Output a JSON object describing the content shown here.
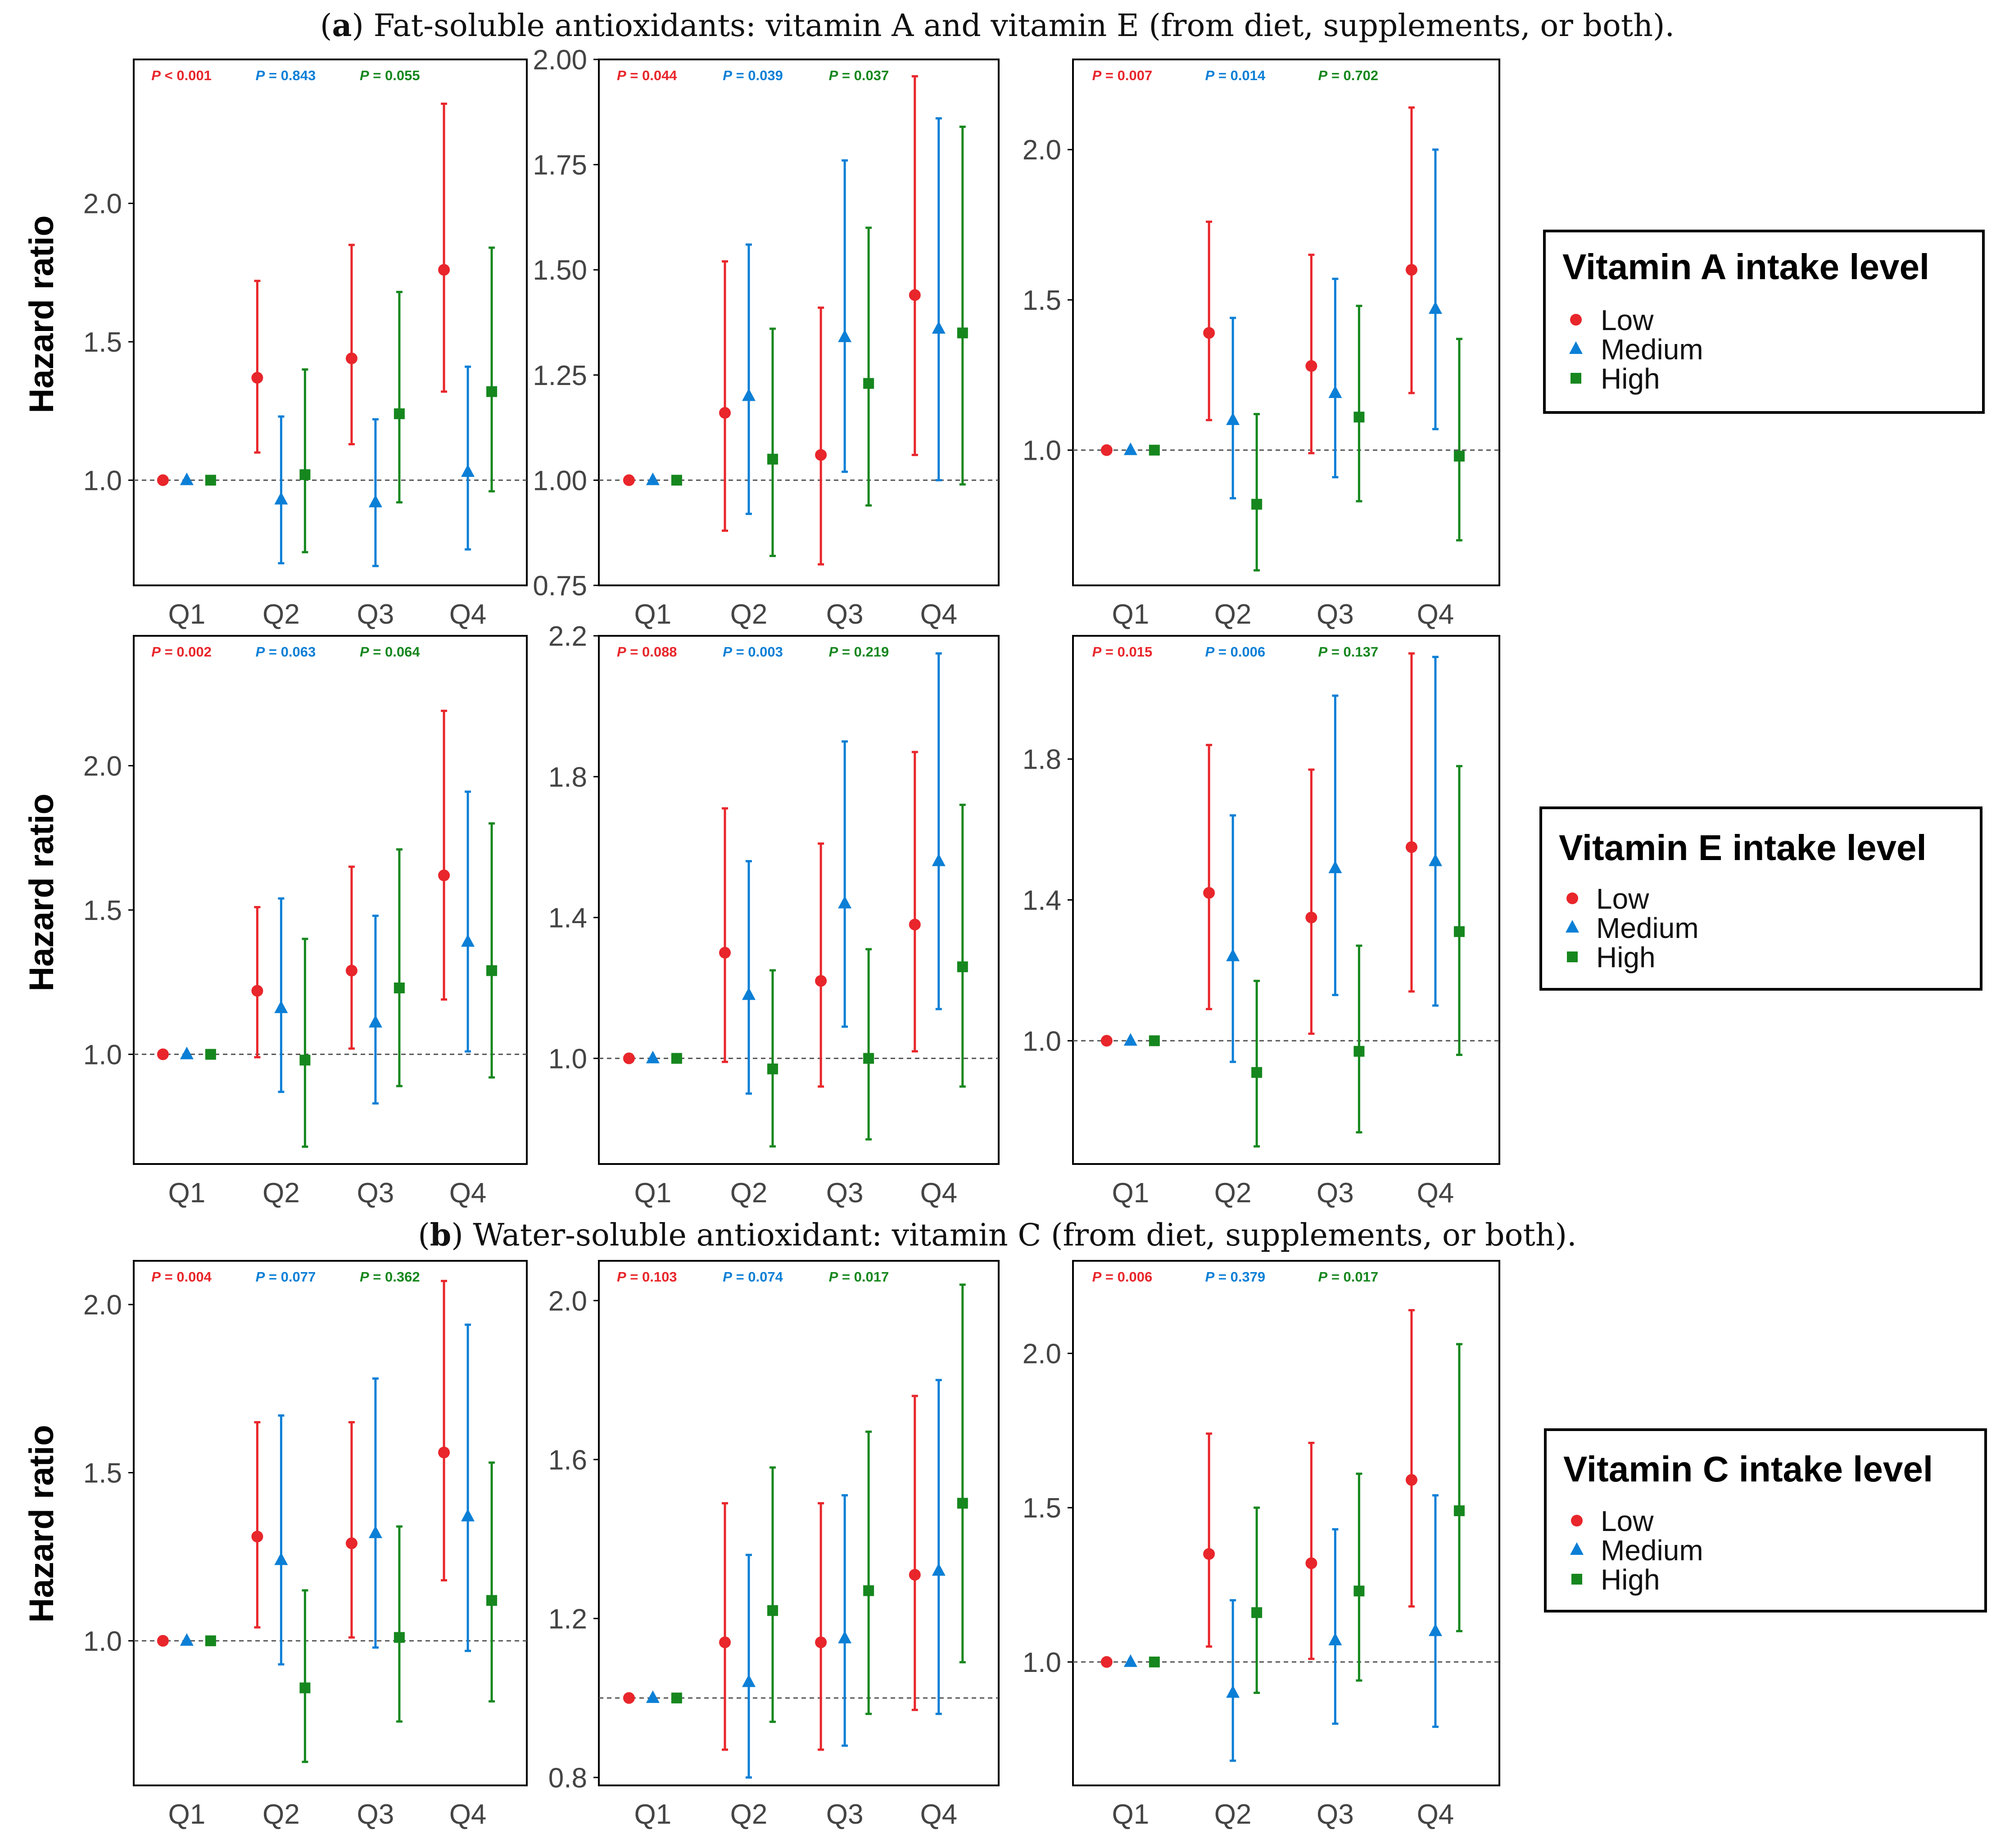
{
  "headings": {
    "a": {
      "label": "a",
      "text": ") Fat-soluble antioxidants: vitamin A and vitamin E (from diet, supplements, or both)."
    },
    "b": {
      "label": "b",
      "text": ") Water-soluble antioxidant: vitamin C (from diet, supplements, or both)."
    }
  },
  "legends": [
    {
      "title": "Vitamin A intake level",
      "items": [
        "Low",
        "Medium",
        "High"
      ]
    },
    {
      "title": "Vitamin E intake level",
      "items": [
        "Low",
        "Medium",
        "High"
      ]
    },
    {
      "title": "Vitamin C intake level",
      "items": [
        "Low",
        "Medium",
        "High"
      ]
    }
  ],
  "colors": {
    "Low": "#e8262b",
    "Medium": "#0b7fd6",
    "High": "#16871e",
    "reference_line": "#555555"
  },
  "y_axis_label": "Hazard ratio",
  "p_prefix": "P",
  "chart_data": [
    {
      "type": "scatter",
      "row": 0,
      "col": 0,
      "ylabel": "Hazard ratio",
      "categories": [
        "Q1",
        "Q2",
        "Q3",
        "Q4"
      ],
      "ylim": [
        0.62,
        2.52
      ],
      "yticks": [
        1.0,
        1.5,
        2.0
      ],
      "yticklabels": [
        "1.0",
        "1.5",
        "2.0"
      ],
      "reference_line": 1.0,
      "p_values": [
        {
          "series": "Low",
          "text": "< 0.001"
        },
        {
          "series": "Medium",
          "text": "= 0.843"
        },
        {
          "series": "High",
          "text": "= 0.055"
        }
      ],
      "series": [
        {
          "name": "Low",
          "estimate": [
            1.0,
            1.37,
            1.44,
            1.76
          ],
          "lower": [
            null,
            1.1,
            1.13,
            1.32
          ],
          "upper": [
            null,
            1.72,
            1.85,
            2.36
          ]
        },
        {
          "name": "Medium",
          "estimate": [
            1.0,
            0.93,
            0.92,
            1.03
          ],
          "lower": [
            null,
            0.7,
            0.69,
            0.75
          ],
          "upper": [
            null,
            1.23,
            1.22,
            1.41
          ]
        },
        {
          "name": "High",
          "estimate": [
            1.0,
            1.02,
            1.24,
            1.32
          ],
          "lower": [
            null,
            0.74,
            0.92,
            0.96
          ],
          "upper": [
            null,
            1.4,
            1.68,
            1.84
          ]
        }
      ]
    },
    {
      "type": "scatter",
      "row": 0,
      "col": 1,
      "ylabel": "",
      "categories": [
        "Q1",
        "Q2",
        "Q3",
        "Q4"
      ],
      "ylim": [
        0.75,
        2.0
      ],
      "yticks": [
        0.75,
        1.0,
        1.25,
        1.5,
        1.75,
        2.0
      ],
      "yticklabels": [
        "0.75",
        "1.00",
        "1.25",
        "1.50",
        "1.75",
        "2.00"
      ],
      "reference_line": 1.0,
      "p_values": [
        {
          "series": "Low",
          "text": "= 0.044"
        },
        {
          "series": "Medium",
          "text": "= 0.039"
        },
        {
          "series": "High",
          "text": "= 0.037"
        }
      ],
      "series": [
        {
          "name": "Low",
          "estimate": [
            1.0,
            1.16,
            1.06,
            1.44
          ],
          "lower": [
            null,
            0.88,
            0.8,
            1.06
          ],
          "upper": [
            null,
            1.52,
            1.41,
            1.96
          ]
        },
        {
          "name": "Medium",
          "estimate": [
            1.0,
            1.2,
            1.34,
            1.36
          ],
          "lower": [
            null,
            0.92,
            1.02,
            1.0
          ],
          "upper": [
            null,
            1.56,
            1.76,
            1.86
          ]
        },
        {
          "name": "High",
          "estimate": [
            1.0,
            1.05,
            1.23,
            1.35
          ],
          "lower": [
            null,
            0.82,
            0.94,
            0.99
          ],
          "upper": [
            null,
            1.36,
            1.6,
            1.84
          ]
        }
      ]
    },
    {
      "type": "scatter",
      "row": 0,
      "col": 2,
      "ylabel": "",
      "categories": [
        "Q1",
        "Q2",
        "Q3",
        "Q4"
      ],
      "ylim": [
        0.55,
        2.3
      ],
      "yticks": [
        1.0,
        1.5,
        2.0
      ],
      "yticklabels": [
        "1.0",
        "1.5",
        "2.0"
      ],
      "reference_line": 1.0,
      "p_values": [
        {
          "series": "Low",
          "text": "= 0.007"
        },
        {
          "series": "Medium",
          "text": "= 0.014"
        },
        {
          "series": "High",
          "text": "= 0.702"
        }
      ],
      "series": [
        {
          "name": "Low",
          "estimate": [
            1.0,
            1.39,
            1.28,
            1.6
          ],
          "lower": [
            null,
            1.1,
            0.99,
            1.19
          ],
          "upper": [
            null,
            1.76,
            1.65,
            2.14
          ]
        },
        {
          "name": "Medium",
          "estimate": [
            1.0,
            1.1,
            1.19,
            1.47
          ],
          "lower": [
            null,
            0.84,
            0.91,
            1.07
          ],
          "upper": [
            null,
            1.44,
            1.57,
            2.0
          ]
        },
        {
          "name": "High",
          "estimate": [
            1.0,
            0.82,
            1.11,
            0.98
          ],
          "lower": [
            null,
            0.6,
            0.83,
            0.7
          ],
          "upper": [
            null,
            1.12,
            1.48,
            1.37
          ]
        }
      ]
    },
    {
      "type": "scatter",
      "row": 1,
      "col": 0,
      "ylabel": "Hazard ratio",
      "categories": [
        "Q1",
        "Q2",
        "Q3",
        "Q4"
      ],
      "ylim": [
        0.62,
        2.45
      ],
      "yticks": [
        1.0,
        1.5,
        2.0
      ],
      "yticklabels": [
        "1.0",
        "1.5",
        "2.0"
      ],
      "reference_line": 1.0,
      "p_values": [
        {
          "series": "Low",
          "text": "= 0.002"
        },
        {
          "series": "Medium",
          "text": "= 0.063"
        },
        {
          "series": "High",
          "text": "= 0.064"
        }
      ],
      "series": [
        {
          "name": "Low",
          "estimate": [
            1.0,
            1.22,
            1.29,
            1.62
          ],
          "lower": [
            null,
            0.99,
            1.02,
            1.19
          ],
          "upper": [
            null,
            1.51,
            1.65,
            2.19
          ]
        },
        {
          "name": "Medium",
          "estimate": [
            1.0,
            1.16,
            1.11,
            1.39
          ],
          "lower": [
            null,
            0.87,
            0.83,
            1.01
          ],
          "upper": [
            null,
            1.54,
            1.48,
            1.91
          ]
        },
        {
          "name": "High",
          "estimate": [
            1.0,
            0.98,
            1.23,
            1.29
          ],
          "lower": [
            null,
            0.68,
            0.89,
            0.92
          ],
          "upper": [
            null,
            1.4,
            1.71,
            1.8
          ]
        }
      ]
    },
    {
      "type": "scatter",
      "row": 1,
      "col": 1,
      "ylabel": "",
      "categories": [
        "Q1",
        "Q2",
        "Q3",
        "Q4"
      ],
      "ylim": [
        0.7,
        2.2
      ],
      "yticks": [
        1.0,
        1.4,
        1.8,
        2.2
      ],
      "yticklabels": [
        "1.0",
        "1.4",
        "1.8",
        "2.2"
      ],
      "reference_line": 1.0,
      "p_values": [
        {
          "series": "Low",
          "text": "= 0.088"
        },
        {
          "series": "Medium",
          "text": "= 0.003"
        },
        {
          "series": "High",
          "text": "= 0.219"
        }
      ],
      "series": [
        {
          "name": "Low",
          "estimate": [
            1.0,
            1.3,
            1.22,
            1.38
          ],
          "lower": [
            null,
            0.99,
            0.92,
            1.02
          ],
          "upper": [
            null,
            1.71,
            1.61,
            1.87
          ]
        },
        {
          "name": "Medium",
          "estimate": [
            1.0,
            1.18,
            1.44,
            1.56
          ],
          "lower": [
            null,
            0.9,
            1.09,
            1.14
          ],
          "upper": [
            null,
            1.56,
            1.9,
            2.15
          ]
        },
        {
          "name": "High",
          "estimate": [
            1.0,
            0.97,
            1.0,
            1.26
          ],
          "lower": [
            null,
            0.75,
            0.77,
            0.92
          ],
          "upper": [
            null,
            1.25,
            1.31,
            1.72
          ]
        }
      ]
    },
    {
      "type": "scatter",
      "row": 1,
      "col": 2,
      "ylabel": "",
      "categories": [
        "Q1",
        "Q2",
        "Q3",
        "Q4"
      ],
      "ylim": [
        0.65,
        2.15
      ],
      "yticks": [
        1.0,
        1.4,
        1.8
      ],
      "yticklabels": [
        "1.0",
        "1.4",
        "1.8"
      ],
      "reference_line": 1.0,
      "p_values": [
        {
          "series": "Low",
          "text": "= 0.015"
        },
        {
          "series": "Medium",
          "text": "= 0.006"
        },
        {
          "series": "High",
          "text": "= 0.137"
        }
      ],
      "series": [
        {
          "name": "Low",
          "estimate": [
            1.0,
            1.42,
            1.35,
            1.55
          ],
          "lower": [
            null,
            1.09,
            1.02,
            1.14
          ],
          "upper": [
            null,
            1.84,
            1.77,
            2.1
          ]
        },
        {
          "name": "Medium",
          "estimate": [
            1.0,
            1.24,
            1.49,
            1.51
          ],
          "lower": [
            null,
            0.94,
            1.13,
            1.1
          ],
          "upper": [
            null,
            1.64,
            1.98,
            2.09
          ]
        },
        {
          "name": "High",
          "estimate": [
            1.0,
            0.91,
            0.97,
            1.31
          ],
          "lower": [
            null,
            0.7,
            0.74,
            0.96
          ],
          "upper": [
            null,
            1.17,
            1.27,
            1.78
          ]
        }
      ]
    },
    {
      "type": "scatter",
      "row": 2,
      "col": 0,
      "ylabel": "Hazard ratio",
      "categories": [
        "Q1",
        "Q2",
        "Q3",
        "Q4"
      ],
      "ylim": [
        0.57,
        2.13
      ],
      "yticks": [
        1.0,
        1.5,
        2.0
      ],
      "yticklabels": [
        "1.0",
        "1.5",
        "2.0"
      ],
      "reference_line": 1.0,
      "p_values": [
        {
          "series": "Low",
          "text": "= 0.004"
        },
        {
          "series": "Medium",
          "text": "= 0.077"
        },
        {
          "series": "High",
          "text": "= 0.362"
        }
      ],
      "series": [
        {
          "name": "Low",
          "estimate": [
            1.0,
            1.31,
            1.29,
            1.56
          ],
          "lower": [
            null,
            1.04,
            1.01,
            1.18
          ],
          "upper": [
            null,
            1.65,
            1.65,
            2.07
          ]
        },
        {
          "name": "Medium",
          "estimate": [
            1.0,
            1.24,
            1.32,
            1.37
          ],
          "lower": [
            null,
            0.93,
            0.98,
            0.97
          ],
          "upper": [
            null,
            1.67,
            1.78,
            1.94
          ]
        },
        {
          "name": "High",
          "estimate": [
            1.0,
            0.86,
            1.01,
            1.12
          ],
          "lower": [
            null,
            0.64,
            0.76,
            0.82
          ],
          "upper": [
            null,
            1.15,
            1.34,
            1.53
          ]
        }
      ]
    },
    {
      "type": "scatter",
      "row": 2,
      "col": 1,
      "ylabel": "",
      "categories": [
        "Q1",
        "Q2",
        "Q3",
        "Q4"
      ],
      "ylim": [
        0.78,
        2.1
      ],
      "yticks": [
        0.8,
        1.2,
        1.6,
        2.0
      ],
      "yticklabels": [
        "0.8",
        "1.2",
        "1.6",
        "2.0"
      ],
      "reference_line": 1.0,
      "p_values": [
        {
          "series": "Low",
          "text": "= 0.103"
        },
        {
          "series": "Medium",
          "text": "= 0.074"
        },
        {
          "series": "High",
          "text": "= 0.017"
        }
      ],
      "series": [
        {
          "name": "Low",
          "estimate": [
            1.0,
            1.14,
            1.14,
            1.31
          ],
          "lower": [
            null,
            0.87,
            0.87,
            0.97
          ],
          "upper": [
            null,
            1.49,
            1.49,
            1.76
          ]
        },
        {
          "name": "Medium",
          "estimate": [
            1.0,
            1.04,
            1.15,
            1.32
          ],
          "lower": [
            null,
            0.8,
            0.88,
            0.96
          ],
          "upper": [
            null,
            1.36,
            1.51,
            1.8
          ]
        },
        {
          "name": "High",
          "estimate": [
            1.0,
            1.22,
            1.27,
            1.49
          ],
          "lower": [
            null,
            0.94,
            0.96,
            1.09
          ],
          "upper": [
            null,
            1.58,
            1.67,
            2.04
          ]
        }
      ]
    },
    {
      "type": "scatter",
      "row": 2,
      "col": 2,
      "ylabel": "",
      "categories": [
        "Q1",
        "Q2",
        "Q3",
        "Q4"
      ],
      "ylim": [
        0.6,
        2.3
      ],
      "yticks": [
        1.0,
        1.5,
        2.0
      ],
      "yticklabels": [
        "1.0",
        "1.5",
        "2.0"
      ],
      "reference_line": 1.0,
      "p_values": [
        {
          "series": "Low",
          "text": "= 0.006"
        },
        {
          "series": "Medium",
          "text": "= 0.379"
        },
        {
          "series": "High",
          "text": "= 0.017"
        }
      ],
      "series": [
        {
          "name": "Low",
          "estimate": [
            1.0,
            1.35,
            1.32,
            1.59
          ],
          "lower": [
            null,
            1.05,
            1.01,
            1.18
          ],
          "upper": [
            null,
            1.74,
            1.71,
            2.14
          ]
        },
        {
          "name": "Medium",
          "estimate": [
            1.0,
            0.9,
            1.07,
            1.1
          ],
          "lower": [
            null,
            0.68,
            0.8,
            0.79
          ],
          "upper": [
            null,
            1.2,
            1.43,
            1.54
          ]
        },
        {
          "name": "High",
          "estimate": [
            1.0,
            1.16,
            1.23,
            1.49
          ],
          "lower": [
            null,
            0.9,
            0.94,
            1.1
          ],
          "upper": [
            null,
            1.5,
            1.61,
            2.03
          ]
        }
      ]
    }
  ]
}
